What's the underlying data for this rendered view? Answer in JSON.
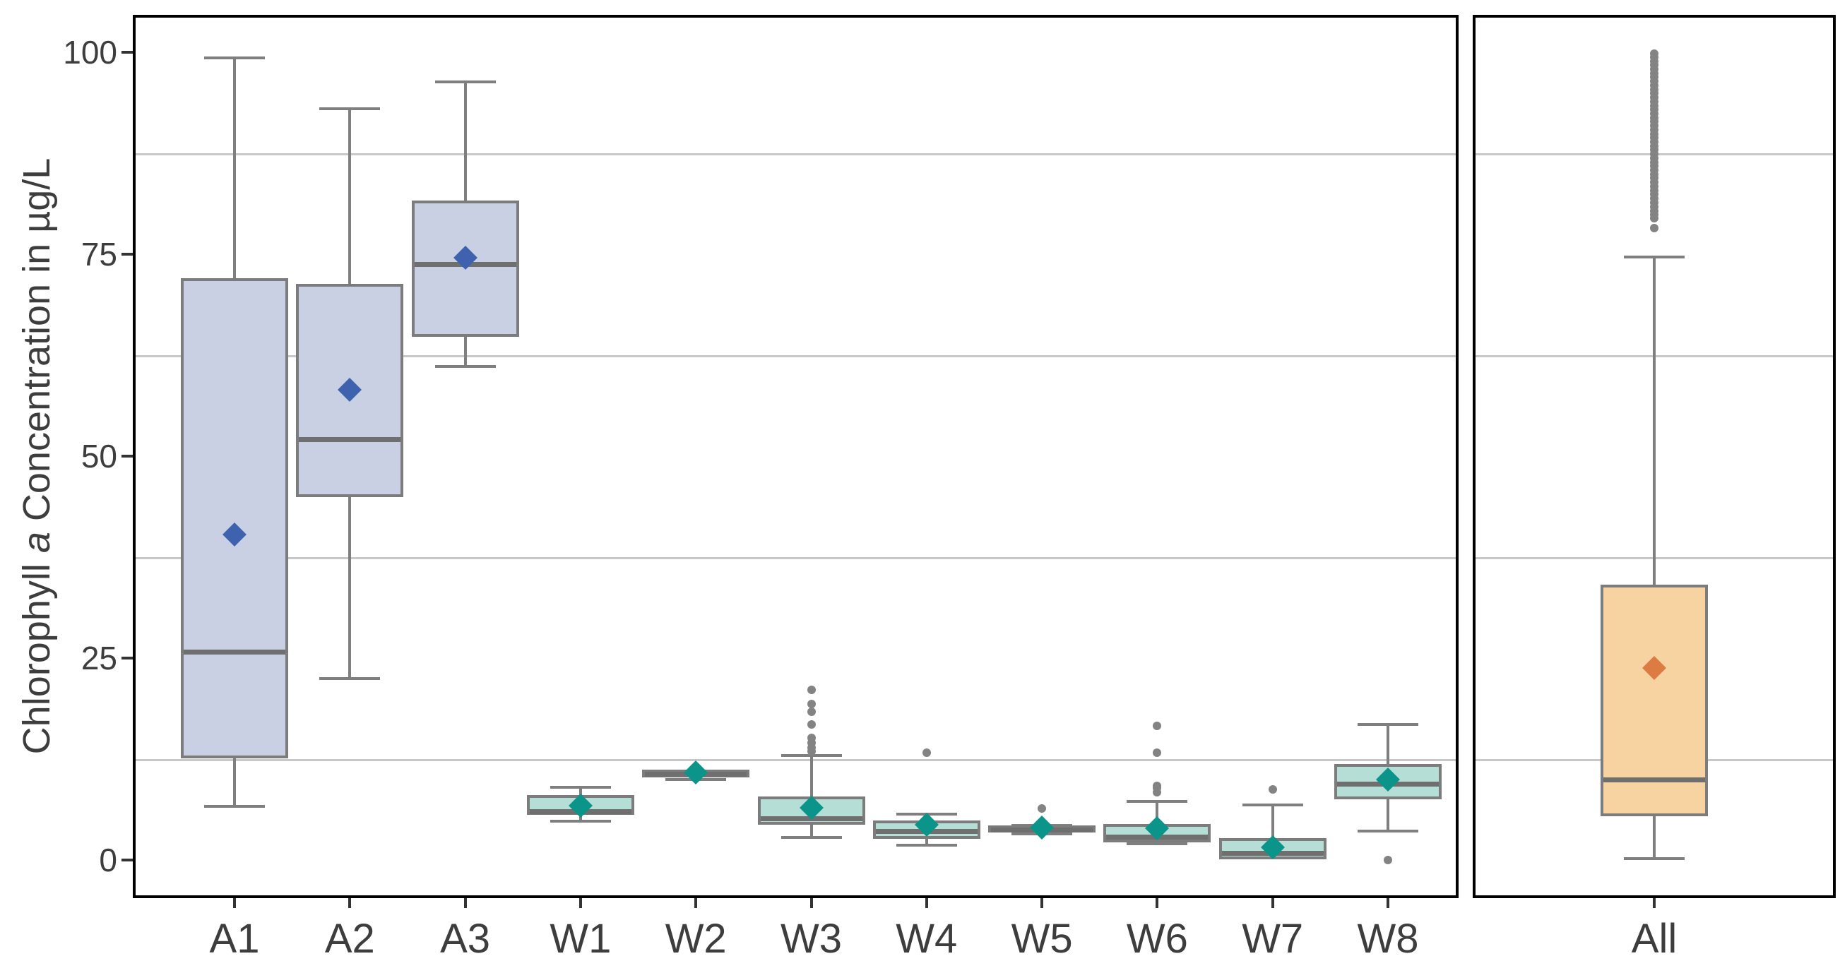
{
  "chart_data": {
    "type": "boxplot",
    "title": "",
    "xlabel": "",
    "ylabel": "Chlorophyll a Concentration in µg/L",
    "ylabel_parts": [
      "Chlorophyll ",
      "a",
      " Concentration in µg/L"
    ],
    "ylim": [
      -4.7,
      105
    ],
    "yticks": [
      0,
      25,
      50,
      75,
      100
    ],
    "minor_gridlines": [
      12.5,
      37.5,
      62.5,
      87.5
    ],
    "grid": "minor horizontal only, light gray",
    "legend_position": "none",
    "panels": [
      {
        "name": "sites",
        "categories": [
          {
            "label": "A1",
            "group": "blue",
            "min": 6.5,
            "q1": 12.6,
            "median": 25.8,
            "q3": 72.0,
            "max": 99.5,
            "mean": 40.3,
            "outliers": []
          },
          {
            "label": "A2",
            "group": "blue",
            "min": 22.3,
            "q1": 44.9,
            "median": 52.1,
            "q3": 71.3,
            "max": 93.2,
            "mean": 58.2,
            "outliers": []
          },
          {
            "label": "A3",
            "group": "blue",
            "min": 60.9,
            "q1": 64.8,
            "median": 73.8,
            "q3": 81.6,
            "max": 96.5,
            "mean": 74.6,
            "outliers": []
          },
          {
            "label": "W1",
            "group": "teal",
            "min": 4.6,
            "q1": 5.6,
            "median": 6.0,
            "q3": 8.0,
            "max": 9.2,
            "mean": 6.7,
            "outliers": []
          },
          {
            "label": "W2",
            "group": "teal",
            "min": 9.8,
            "q1": 10.2,
            "median": 10.7,
            "q3": 11.2,
            "max": 11.3,
            "mean": 10.8,
            "outliers": []
          },
          {
            "label": "W3",
            "group": "teal",
            "min": 2.6,
            "q1": 4.4,
            "median": 5.2,
            "q3": 7.9,
            "max": 13.1,
            "mean": 6.5,
            "outliers": [
              13.5,
              13.9,
              14.5,
              15.1,
              16.8,
              18.4,
              19.3,
              21.1
            ]
          },
          {
            "label": "W4",
            "group": "teal",
            "min": 1.7,
            "q1": 2.6,
            "median": 3.6,
            "q3": 4.9,
            "max": 5.9,
            "mean": 4.4,
            "outliers": [
              13.3
            ]
          },
          {
            "label": "W5",
            "group": "teal",
            "min": 3.1,
            "q1": 3.4,
            "median": 3.8,
            "q3": 4.3,
            "max": 4.5,
            "mean": 4.0,
            "outliers": [
              6.4
            ]
          },
          {
            "label": "W6",
            "group": "teal",
            "min": 1.8,
            "q1": 2.2,
            "median": 2.9,
            "q3": 4.5,
            "max": 7.4,
            "mean": 3.9,
            "outliers": [
              8.4,
              8.9,
              9.2,
              13.3,
              16.6
            ]
          },
          {
            "label": "W7",
            "group": "teal",
            "min": 0.1,
            "q1": 0.1,
            "median": 0.9,
            "q3": 2.7,
            "max": 7.0,
            "mean": 1.6,
            "outliers": [
              8.7
            ]
          },
          {
            "label": "W8",
            "group": "teal",
            "min": 3.4,
            "q1": 7.5,
            "median": 9.4,
            "q3": 11.9,
            "max": 17.0,
            "mean": 10.0,
            "outliers": [
              0.0
            ]
          }
        ]
      },
      {
        "name": "combined",
        "categories": [
          {
            "label": "All",
            "group": "orange",
            "min": 0.0,
            "q1": 5.4,
            "median": 10.0,
            "q3": 34.1,
            "max": 74.8,
            "mean": 23.8,
            "outliers": [
              78.2,
              79.5,
              79.9,
              80.3,
              80.9,
              81.4,
              81.9,
              82.4,
              82.9,
              83.4,
              83.9,
              84.4,
              84.9,
              85.4,
              85.9,
              86.4,
              86.9,
              87.4,
              87.9,
              88.4,
              88.9,
              89.4,
              89.9,
              90.4,
              90.9,
              91.4,
              91.9,
              92.4,
              92.9,
              93.4,
              93.9,
              94.4,
              94.9,
              95.4,
              95.9,
              96.4,
              96.9,
              97.4,
              97.9,
              98.4,
              98.9,
              99.4,
              99.8
            ]
          }
        ]
      }
    ]
  },
  "colors": {
    "background": "#ffffff",
    "panel_border": "#000000",
    "gridline": "#c8c8c8",
    "box_border": "#7c7c7c",
    "whisker": "#7f7f7f",
    "median": "#6f6f6f",
    "outlier": "#838383",
    "text": "#3d3d3d",
    "fill_blue": "#c9d0e4",
    "fill_teal": "#b5ded7",
    "fill_orange": "#f6d3a1",
    "mean_blue": "#3e62ae",
    "mean_teal": "#0a948a",
    "mean_orange": "#dd7c42"
  }
}
